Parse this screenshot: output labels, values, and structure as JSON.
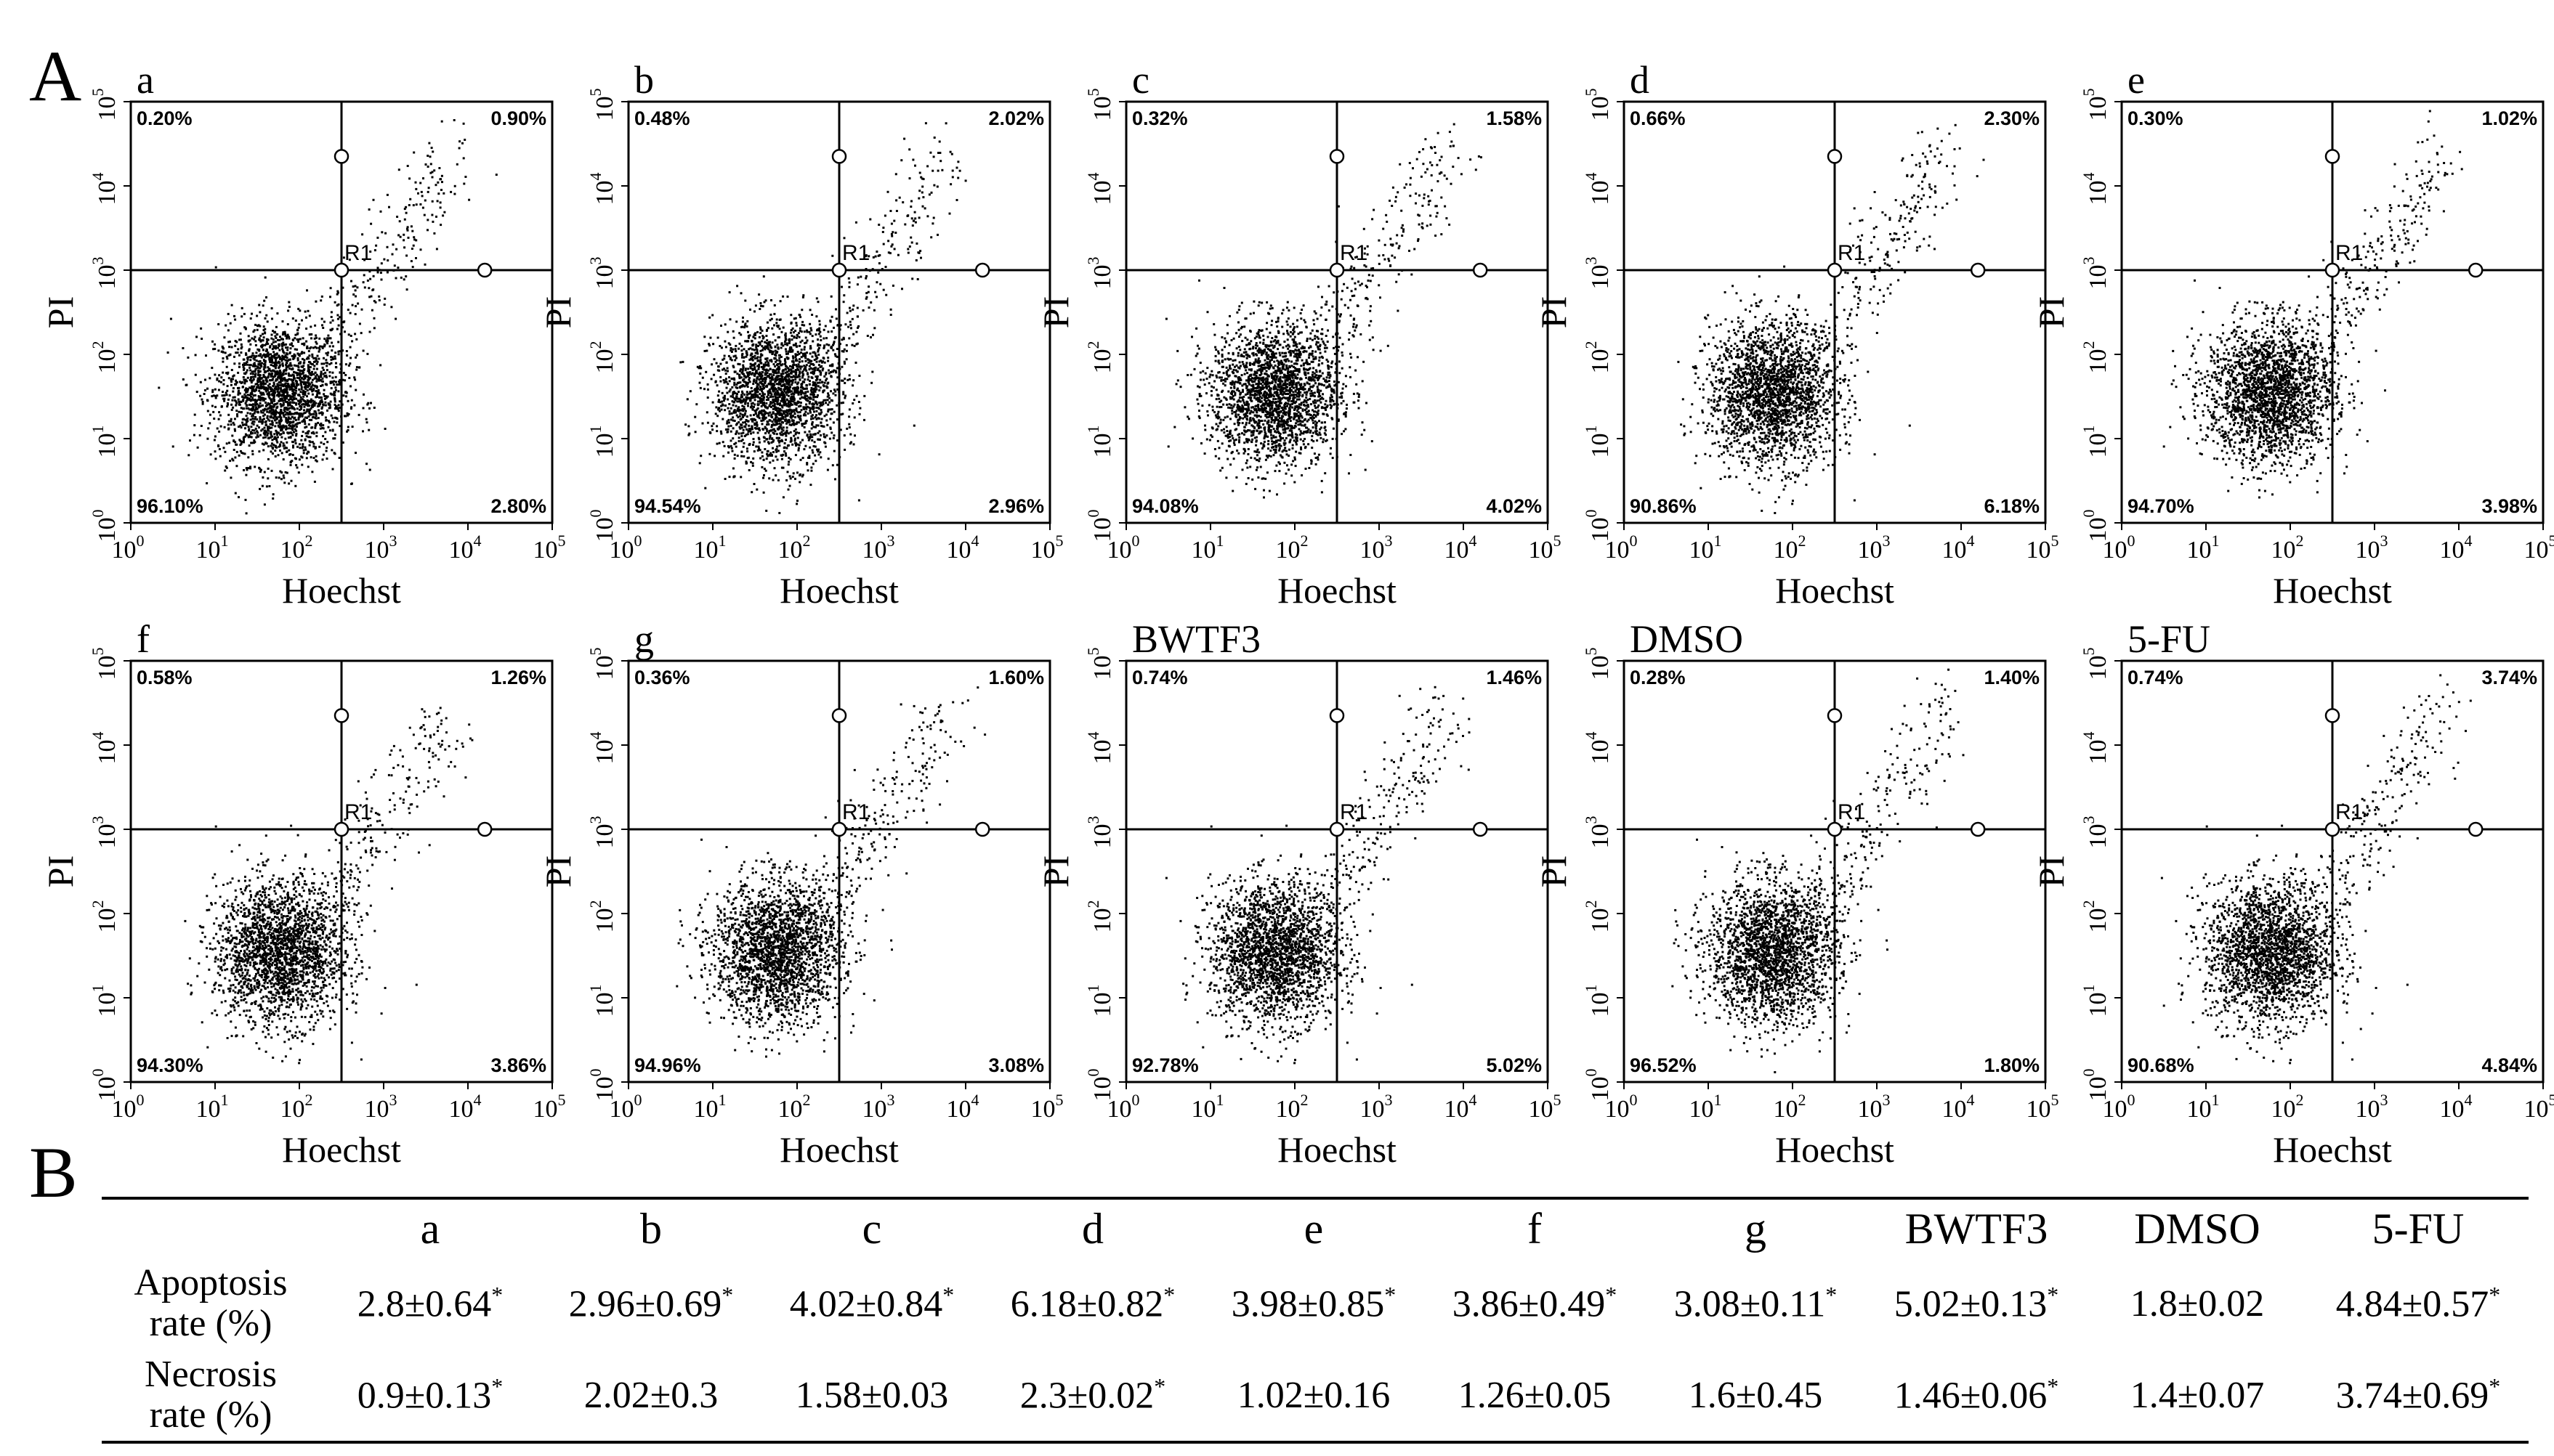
{
  "figure": {
    "panel_a_label": "A",
    "panel_b_label": "B",
    "x_axis_label": "Hoechst",
    "y_axis_label": "PI",
    "gate_label": "R1",
    "tick_labels": [
      "0",
      "1",
      "2",
      "3",
      "4",
      "5"
    ],
    "tick_base": "10"
  },
  "chart_data": [
    {
      "type": "scatter",
      "title": "a",
      "xlabel": "Hoechst",
      "ylabel": "PI",
      "xlim": [
        1,
        100000
      ],
      "ylim": [
        1,
        100000
      ],
      "scale": "log",
      "quadrants": {
        "upper_left": "0.20%",
        "upper_right": "0.90%",
        "lower_left": "96.10%",
        "lower_right": "2.80%"
      }
    },
    {
      "type": "scatter",
      "title": "b",
      "xlabel": "Hoechst",
      "ylabel": "PI",
      "xlim": [
        1,
        100000
      ],
      "ylim": [
        1,
        100000
      ],
      "scale": "log",
      "quadrants": {
        "upper_left": "0.48%",
        "upper_right": "2.02%",
        "lower_left": "94.54%",
        "lower_right": "2.96%"
      }
    },
    {
      "type": "scatter",
      "title": "c",
      "xlabel": "Hoechst",
      "ylabel": "PI",
      "xlim": [
        1,
        100000
      ],
      "ylim": [
        1,
        100000
      ],
      "scale": "log",
      "quadrants": {
        "upper_left": "0.32%",
        "upper_right": "1.58%",
        "lower_left": "94.08%",
        "lower_right": "4.02%"
      }
    },
    {
      "type": "scatter",
      "title": "d",
      "xlabel": "Hoechst",
      "ylabel": "PI",
      "xlim": [
        1,
        100000
      ],
      "ylim": [
        1,
        100000
      ],
      "scale": "log",
      "quadrants": {
        "upper_left": "0.66%",
        "upper_right": "2.30%",
        "lower_left": "90.86%",
        "lower_right": "6.18%"
      }
    },
    {
      "type": "scatter",
      "title": "e",
      "xlabel": "Hoechst",
      "ylabel": "PI",
      "xlim": [
        1,
        100000
      ],
      "ylim": [
        1,
        100000
      ],
      "scale": "log",
      "quadrants": {
        "upper_left": "0.30%",
        "upper_right": "1.02%",
        "lower_left": "94.70%",
        "lower_right": "3.98%"
      }
    },
    {
      "type": "scatter",
      "title": "f",
      "xlabel": "Hoechst",
      "ylabel": "PI",
      "xlim": [
        1,
        100000
      ],
      "ylim": [
        1,
        100000
      ],
      "scale": "log",
      "quadrants": {
        "upper_left": "0.58%",
        "upper_right": "1.26%",
        "lower_left": "94.30%",
        "lower_right": "3.86%"
      }
    },
    {
      "type": "scatter",
      "title": "g",
      "xlabel": "Hoechst",
      "ylabel": "PI",
      "xlim": [
        1,
        100000
      ],
      "ylim": [
        1,
        100000
      ],
      "scale": "log",
      "quadrants": {
        "upper_left": "0.36%",
        "upper_right": "1.60%",
        "lower_left": "94.96%",
        "lower_right": "3.08%"
      }
    },
    {
      "type": "scatter",
      "title": "BWTF3",
      "xlabel": "Hoechst",
      "ylabel": "PI",
      "xlim": [
        1,
        100000
      ],
      "ylim": [
        1,
        100000
      ],
      "scale": "log",
      "quadrants": {
        "upper_left": "0.74%",
        "upper_right": "1.46%",
        "lower_left": "92.78%",
        "lower_right": "5.02%"
      }
    },
    {
      "type": "scatter",
      "title": "DMSO",
      "xlabel": "Hoechst",
      "ylabel": "PI",
      "xlim": [
        1,
        100000
      ],
      "ylim": [
        1,
        100000
      ],
      "scale": "log",
      "quadrants": {
        "upper_left": "0.28%",
        "upper_right": "1.40%",
        "lower_left": "96.52%",
        "lower_right": "1.80%"
      }
    },
    {
      "type": "scatter",
      "title": "5-FU",
      "xlabel": "Hoechst",
      "ylabel": "PI",
      "xlim": [
        1,
        100000
      ],
      "ylim": [
        1,
        100000
      ],
      "scale": "log",
      "quadrants": {
        "upper_left": "0.74%",
        "upper_right": "3.74%",
        "lower_left": "90.68%",
        "lower_right": "4.84%"
      }
    },
    {
      "type": "table",
      "columns": [
        "a",
        "b",
        "c",
        "d",
        "e",
        "f",
        "g",
        "BWTF3",
        "DMSO",
        "5-FU"
      ],
      "rows": [
        {
          "label_line1": "Apoptosis",
          "label_line2": "rate (%)",
          "values": [
            "2.8±0.64",
            "2.96±0.69",
            "4.02±0.84",
            "6.18±0.82",
            "3.98±0.85",
            "3.86±0.49",
            "3.08±0.11",
            "5.02±0.13",
            "1.8±0.02",
            "4.84±0.57"
          ],
          "significant": [
            true,
            true,
            true,
            true,
            true,
            true,
            true,
            true,
            false,
            true
          ]
        },
        {
          "label_line1": "Necrosis",
          "label_line2": "rate (%)",
          "values": [
            "0.9±0.13",
            "2.02±0.3",
            "1.58±0.03",
            "2.3±0.02",
            "1.02±0.16",
            "1.26±0.05",
            "1.6±0.45",
            "1.46±0.06",
            "1.4±0.07",
            "3.74±0.69"
          ],
          "significant": [
            true,
            false,
            false,
            true,
            false,
            false,
            false,
            true,
            false,
            true
          ]
        }
      ],
      "significance_marker": "*"
    }
  ]
}
